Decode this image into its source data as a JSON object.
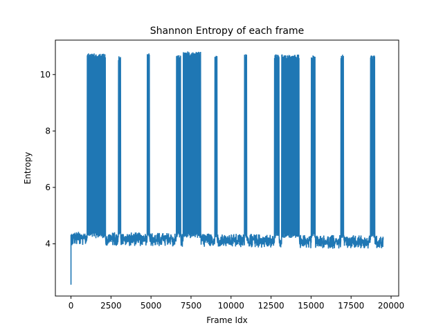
{
  "chart_data": {
    "type": "line",
    "title": "Shannon Entropy of each frame",
    "xlabel": "Frame Idx",
    "ylabel": "Entropy",
    "xlim": [
      -975,
      20475
    ],
    "ylim": [
      2.15,
      11.22
    ],
    "x_ticks": [
      0,
      2500,
      5000,
      7500,
      10000,
      12500,
      15000,
      17500,
      20000
    ],
    "x_tick_labels": [
      "0",
      "2500",
      "5000",
      "7500",
      "10000",
      "12500",
      "15000",
      "17500",
      "20000"
    ],
    "y_ticks": [
      4,
      6,
      8,
      10
    ],
    "y_tick_labels": [
      "4",
      "6",
      "8",
      "10"
    ],
    "grid": false,
    "line_color": "#1f77b4",
    "series": [
      {
        "name": "",
        "x_range": [
          0,
          19500
        ],
        "baseline": {
          "start_value": 2.55,
          "initial_level": 4.3,
          "final_level": 4.05,
          "band_low": 3.85,
          "band_high": 4.35
        },
        "high_bursts": [
          {
            "x_start": 1000,
            "x_end": 2150,
            "low": 4.2,
            "high": 10.75
          },
          {
            "x_start": 2950,
            "x_end": 3100,
            "low": 4.2,
            "high": 10.65
          },
          {
            "x_start": 4760,
            "x_end": 4900,
            "low": 4.2,
            "high": 10.75
          },
          {
            "x_start": 6580,
            "x_end": 6850,
            "low": 4.2,
            "high": 10.7
          },
          {
            "x_start": 7000,
            "x_end": 8100,
            "low": 4.2,
            "high": 10.82
          },
          {
            "x_start": 8980,
            "x_end": 9130,
            "low": 4.2,
            "high": 10.7
          },
          {
            "x_start": 10830,
            "x_end": 10980,
            "low": 4.2,
            "high": 10.72
          },
          {
            "x_start": 12700,
            "x_end": 13000,
            "low": 4.2,
            "high": 10.72
          },
          {
            "x_start": 13150,
            "x_end": 14250,
            "low": 4.2,
            "high": 10.72
          },
          {
            "x_start": 15000,
            "x_end": 15250,
            "low": 4.2,
            "high": 10.7
          },
          {
            "x_start": 16870,
            "x_end": 17030,
            "low": 4.2,
            "high": 10.72
          },
          {
            "x_start": 18700,
            "x_end": 18980,
            "low": 4.2,
            "high": 10.7
          }
        ]
      }
    ]
  }
}
